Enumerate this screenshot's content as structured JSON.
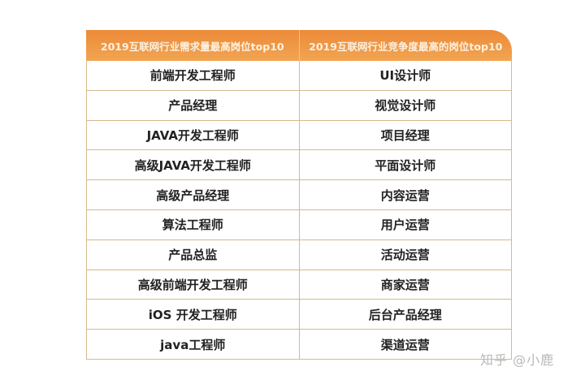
{
  "table": {
    "headers": [
      "2019互联网行业需求量最高岗位top10",
      "2019互联网行业竞争度最高的岗位top10"
    ],
    "rows": [
      [
        "前端开发工程师",
        "UI设计师"
      ],
      [
        "产品经理",
        "视觉设计师"
      ],
      [
        "JAVA开发工程师",
        "项目经理"
      ],
      [
        "高级JAVA开发工程师",
        "平面设计师"
      ],
      [
        "高级产品经理",
        "内容运营"
      ],
      [
        "算法工程师",
        "用户运营"
      ],
      [
        "产品总监",
        "活动运营"
      ],
      [
        "高级前端开发工程师",
        "商家运营"
      ],
      [
        "iOS 开发工程师",
        "后台产品经理"
      ],
      [
        "java工程师",
        "渠道运营"
      ]
    ]
  },
  "watermark": "知乎 @小鹿",
  "colors": {
    "header": "#ee9140",
    "border": "#d6b98c"
  }
}
